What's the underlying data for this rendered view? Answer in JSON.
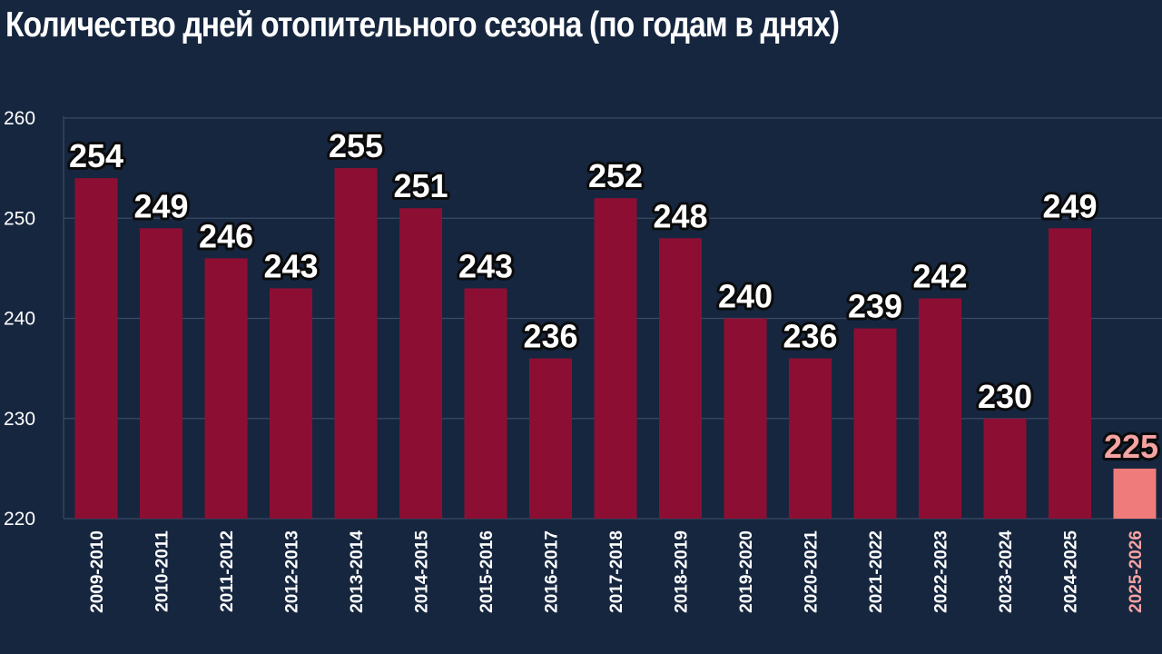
{
  "chart_data": {
    "type": "bar",
    "title": "Количество дней отопительного сезона (по годам в днях)",
    "xlabel": "",
    "ylabel": "",
    "ylim": [
      220,
      260
    ],
    "yticks": [
      220,
      230,
      240,
      250,
      260
    ],
    "grid": true,
    "categories": [
      "2009-2010",
      "2010-2011",
      "2011-2012",
      "2012-2013",
      "2013-2014",
      "2014-2015",
      "2015-2016",
      "2016-2017",
      "2017-2018",
      "2018-2019",
      "2019-2020",
      "2020-2021",
      "2021-2022",
      "2022-2023",
      "2023-2024",
      "2024-2025",
      "2025-2026"
    ],
    "values": [
      254,
      249,
      246,
      243,
      255,
      251,
      243,
      236,
      252,
      248,
      240,
      236,
      239,
      242,
      230,
      249,
      225
    ],
    "data_labels": [
      "254",
      "249",
      "246",
      "243",
      "255",
      "251",
      "243",
      "236",
      "252",
      "248",
      "240",
      "236",
      "239",
      "242",
      "230",
      "249",
      "225"
    ],
    "highlight_index": 16
  },
  "colors": {
    "background": "#16263f",
    "bar": "#8c0f33",
    "bar_highlight": "#ef7b7b",
    "label_highlight": "#f5a3a3",
    "grid": "#3a4a63",
    "text": "#ffffff"
  }
}
